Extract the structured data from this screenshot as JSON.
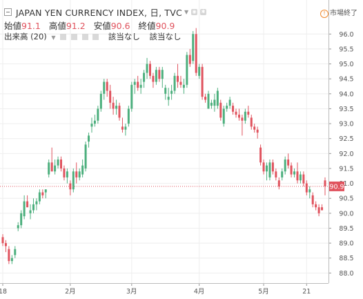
{
  "header": {
    "symbol_line": "JAPAN YEN CURRENCY INDEX, 日, TVC",
    "ohlc": [
      {
        "label": "始値",
        "value": "91.1"
      },
      {
        "label": "高値",
        "value": "91.2"
      },
      {
        "label": "安値",
        "value": "90.6"
      },
      {
        "label": "終値",
        "value": "90.9"
      }
    ],
    "volume_label": "出来高 (20)",
    "volume_na1": "該当なし",
    "volume_na2": "該当なし",
    "market_status": "市場終了"
  },
  "colors": {
    "up": "#4caf7d",
    "down": "#e0535e",
    "grid": "#eeeeee",
    "axis_text": "#555555"
  },
  "chart_data": {
    "type": "candlestick",
    "ylim": [
      87.8,
      96.4
    ],
    "y_ticks": [
      "88.0",
      "88.5",
      "89.0",
      "89.5",
      "90.0",
      "90.5",
      "91.0",
      "91.5",
      "92.0",
      "92.5",
      "93.0",
      "93.5",
      "94.0",
      "94.5",
      "95.0",
      "95.5",
      "96.0"
    ],
    "x_ticks": [
      {
        "label": "18",
        "index": 0
      },
      {
        "label": "2月",
        "index": 22
      },
      {
        "label": "3月",
        "index": 42
      },
      {
        "label": "4月",
        "index": 64
      },
      {
        "label": "5月",
        "index": 85
      },
      {
        "label": "21",
        "index": 99
      }
    ],
    "last_price": "90.9",
    "candles": [
      [
        89.2,
        89.3,
        88.9,
        89.0
      ],
      [
        89.0,
        89.1,
        88.7,
        88.9
      ],
      [
        88.8,
        88.9,
        88.3,
        88.4
      ],
      [
        88.4,
        88.6,
        88.3,
        88.5
      ],
      [
        88.6,
        88.9,
        88.5,
        88.8
      ],
      [
        89.5,
        89.7,
        89.4,
        89.6
      ],
      [
        89.6,
        90.1,
        89.5,
        90.0
      ],
      [
        89.9,
        90.6,
        89.8,
        90.4
      ],
      [
        90.4,
        90.6,
        90.2,
        90.2
      ],
      [
        90.0,
        90.3,
        89.8,
        90.1
      ],
      [
        90.1,
        90.5,
        90.0,
        90.3
      ],
      [
        90.3,
        90.5,
        90.1,
        90.4
      ],
      [
        90.4,
        90.8,
        90.3,
        90.7
      ],
      [
        90.7,
        90.8,
        90.5,
        90.6
      ],
      [
        90.7,
        90.8,
        90.5,
        90.8
      ],
      [
        91.3,
        91.8,
        91.2,
        91.7
      ],
      [
        91.7,
        92.2,
        91.4,
        91.4
      ],
      [
        91.4,
        91.8,
        91.3,
        91.6
      ],
      [
        91.6,
        91.9,
        91.5,
        91.8
      ],
      [
        91.8,
        91.9,
        91.4,
        91.5
      ],
      [
        91.5,
        91.6,
        91.1,
        91.2
      ],
      [
        91.2,
        91.5,
        91.0,
        91.4
      ],
      [
        91.0,
        91.1,
        90.6,
        90.8
      ],
      [
        90.8,
        91.5,
        90.7,
        91.4
      ],
      [
        91.4,
        91.7,
        91.0,
        91.2
      ],
      [
        91.2,
        91.5,
        91.1,
        91.4
      ],
      [
        91.3,
        91.8,
        91.2,
        91.6
      ],
      [
        91.5,
        92.4,
        91.4,
        92.3
      ],
      [
        92.4,
        92.7,
        92.2,
        92.6
      ],
      [
        92.9,
        93.2,
        92.7,
        93.0
      ],
      [
        93.0,
        93.3,
        92.9,
        93.1
      ],
      [
        93.1,
        93.6,
        93.0,
        93.5
      ],
      [
        93.5,
        94.1,
        93.4,
        94.0
      ],
      [
        94.0,
        94.5,
        93.8,
        94.4
      ],
      [
        94.4,
        94.5,
        93.9,
        94.1
      ],
      [
        94.1,
        94.3,
        93.5,
        93.7
      ],
      [
        93.7,
        93.9,
        93.3,
        93.5
      ],
      [
        93.5,
        93.8,
        93.3,
        93.6
      ],
      [
        93.6,
        93.7,
        93.1,
        93.2
      ],
      [
        92.9,
        93.2,
        92.7,
        92.8
      ],
      [
        92.8,
        93.0,
        92.6,
        92.9
      ],
      [
        93.0,
        93.6,
        92.9,
        93.5
      ],
      [
        93.5,
        94.4,
        93.4,
        94.3
      ],
      [
        94.3,
        94.5,
        94.0,
        94.4
      ],
      [
        94.4,
        94.6,
        94.1,
        94.2
      ],
      [
        94.2,
        94.5,
        94.0,
        94.3
      ],
      [
        94.4,
        94.8,
        94.2,
        94.7
      ],
      [
        94.7,
        95.2,
        94.5,
        95.0
      ],
      [
        95.0,
        95.1,
        94.5,
        94.6
      ],
      [
        94.6,
        94.7,
        94.2,
        94.4
      ],
      [
        94.4,
        94.9,
        94.3,
        94.8
      ],
      [
        94.8,
        94.9,
        94.4,
        94.5
      ],
      [
        94.5,
        94.9,
        94.2,
        94.8
      ],
      [
        94.0,
        94.3,
        93.8,
        94.2
      ],
      [
        93.8,
        94.2,
        93.6,
        93.9
      ],
      [
        94.0,
        94.3,
        93.8,
        94.1
      ],
      [
        94.1,
        94.7,
        94.0,
        94.6
      ],
      [
        94.6,
        95.0,
        94.2,
        94.4
      ],
      [
        94.4,
        94.6,
        94.2,
        94.3
      ],
      [
        94.2,
        94.5,
        94.0,
        94.3
      ],
      [
        94.3,
        95.4,
        94.2,
        95.3
      ],
      [
        95.3,
        95.5,
        94.9,
        95.0
      ],
      [
        95.1,
        96.1,
        95.0,
        96.0
      ],
      [
        96.0,
        96.2,
        94.6,
        94.7
      ],
      [
        94.6,
        95.0,
        94.5,
        94.9
      ],
      [
        94.9,
        95.0,
        93.8,
        93.9
      ],
      [
        93.9,
        94.0,
        93.7,
        93.8
      ],
      [
        93.5,
        94.1,
        93.5,
        94.0
      ],
      [
        93.6,
        93.8,
        93.5,
        93.7
      ],
      [
        93.6,
        94.0,
        93.4,
        93.8
      ],
      [
        93.6,
        94.2,
        93.5,
        94.1
      ],
      [
        93.7,
        93.8,
        93.1,
        93.2
      ],
      [
        93.0,
        93.6,
        92.9,
        93.5
      ],
      [
        93.5,
        93.7,
        93.4,
        93.6
      ],
      [
        93.6,
        93.9,
        93.5,
        93.8
      ],
      [
        93.6,
        93.7,
        93.3,
        93.4
      ],
      [
        93.4,
        93.5,
        93.2,
        93.3
      ],
      [
        93.3,
        93.5,
        93.1,
        93.2
      ],
      [
        93.2,
        93.3,
        92.6,
        93.1
      ],
      [
        93.1,
        93.5,
        93.0,
        93.4
      ],
      [
        93.4,
        93.6,
        93.2,
        93.3
      ],
      [
        93.2,
        93.3,
        92.8,
        92.9
      ],
      [
        92.9,
        93.0,
        92.7,
        92.8
      ],
      [
        92.8,
        92.9,
        92.5,
        92.7
      ],
      [
        92.2,
        92.3,
        91.6,
        91.7
      ],
      [
        91.7,
        91.8,
        91.3,
        91.4
      ],
      [
        91.4,
        91.7,
        91.1,
        91.6
      ],
      [
        91.2,
        91.8,
        91.1,
        91.7
      ],
      [
        91.7,
        91.8,
        91.3,
        91.4
      ],
      [
        91.4,
        91.5,
        91.1,
        91.2
      ],
      [
        91.1,
        91.2,
        90.8,
        90.9
      ],
      [
        91.2,
        91.5,
        91.1,
        91.4
      ],
      [
        91.4,
        91.9,
        91.3,
        91.8
      ],
      [
        91.8,
        92.0,
        91.5,
        91.6
      ],
      [
        91.6,
        91.7,
        91.2,
        91.3
      ],
      [
        91.3,
        91.5,
        91.2,
        91.4
      ],
      [
        91.4,
        91.7,
        91.0,
        91.1
      ],
      [
        91.1,
        91.4,
        91.0,
        91.3
      ],
      [
        91.3,
        91.4,
        90.9,
        91.0
      ],
      [
        91.0,
        91.1,
        90.6,
        90.7
      ],
      [
        90.7,
        90.9,
        90.5,
        90.8
      ],
      [
        90.6,
        90.7,
        90.2,
        90.3
      ],
      [
        90.3,
        90.4,
        90.1,
        90.2
      ],
      [
        90.2,
        90.3,
        89.9,
        90.0
      ],
      [
        90.2,
        90.3,
        90.1,
        90.1
      ],
      [
        91.1,
        91.2,
        90.6,
        90.9
      ]
    ]
  }
}
